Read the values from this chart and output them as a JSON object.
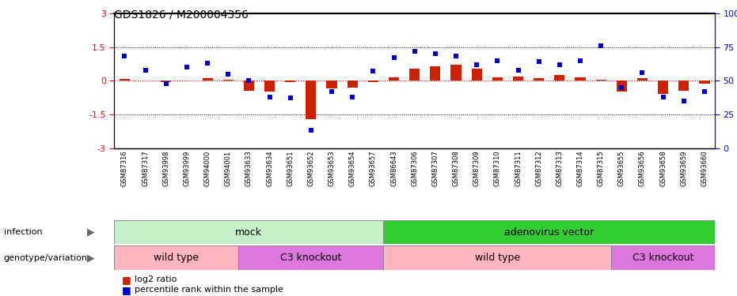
{
  "title": "GDS1826 / M200004356",
  "samples": [
    "GSM87316",
    "GSM87317",
    "GSM93998",
    "GSM93999",
    "GSM94000",
    "GSM94001",
    "GSM93633",
    "GSM93634",
    "GSM93651",
    "GSM93652",
    "GSM93653",
    "GSM93654",
    "GSM93657",
    "GSM86643",
    "GSM87306",
    "GSM87307",
    "GSM87308",
    "GSM87309",
    "GSM87310",
    "GSM87311",
    "GSM87312",
    "GSM87313",
    "GSM87314",
    "GSM87315",
    "GSM93655",
    "GSM93656",
    "GSM93658",
    "GSM93659",
    "GSM93660"
  ],
  "log2_ratio": [
    0.08,
    0.0,
    -0.07,
    0.0,
    0.1,
    0.05,
    -0.45,
    -0.5,
    -0.05,
    -1.7,
    -0.35,
    -0.3,
    -0.05,
    0.15,
    0.55,
    0.65,
    0.7,
    0.55,
    0.15,
    0.2,
    0.1,
    0.25,
    0.15,
    0.05,
    -0.5,
    0.12,
    -0.6,
    -0.45,
    -0.15
  ],
  "percentile": [
    68,
    58,
    48,
    60,
    63,
    55,
    50,
    38,
    37,
    13,
    42,
    38,
    57,
    67,
    72,
    70,
    68,
    62,
    65,
    58,
    64,
    62,
    65,
    76,
    45,
    56,
    38,
    35,
    42
  ],
  "infection_groups": [
    {
      "label": "mock",
      "start": 0,
      "end": 13,
      "color": "#C8F0C8"
    },
    {
      "label": "adenovirus vector",
      "start": 13,
      "end": 29,
      "color": "#33CC33"
    }
  ],
  "genotype_groups": [
    {
      "label": "wild type",
      "start": 0,
      "end": 6,
      "color": "#FFB6C1"
    },
    {
      "label": "C3 knockout",
      "start": 6,
      "end": 13,
      "color": "#DD77DD"
    },
    {
      "label": "wild type",
      "start": 13,
      "end": 24,
      "color": "#FFB6C1"
    },
    {
      "label": "C3 knockout",
      "start": 24,
      "end": 29,
      "color": "#DD77DD"
    }
  ],
  "ylim": [
    -3,
    3
  ],
  "y2lim": [
    0,
    100
  ],
  "yticks_left": [
    -3,
    -1.5,
    0,
    1.5,
    3
  ],
  "yticks_right": [
    0,
    25,
    50,
    75,
    100
  ],
  "bar_color": "#CC2200",
  "dot_color": "#0000CC",
  "infection_label": "infection",
  "genotype_label": "genotype/variation",
  "legend_log2": "log2 ratio",
  "legend_pct": "percentile rank within the sample",
  "bg_color": "#E8E8E8"
}
